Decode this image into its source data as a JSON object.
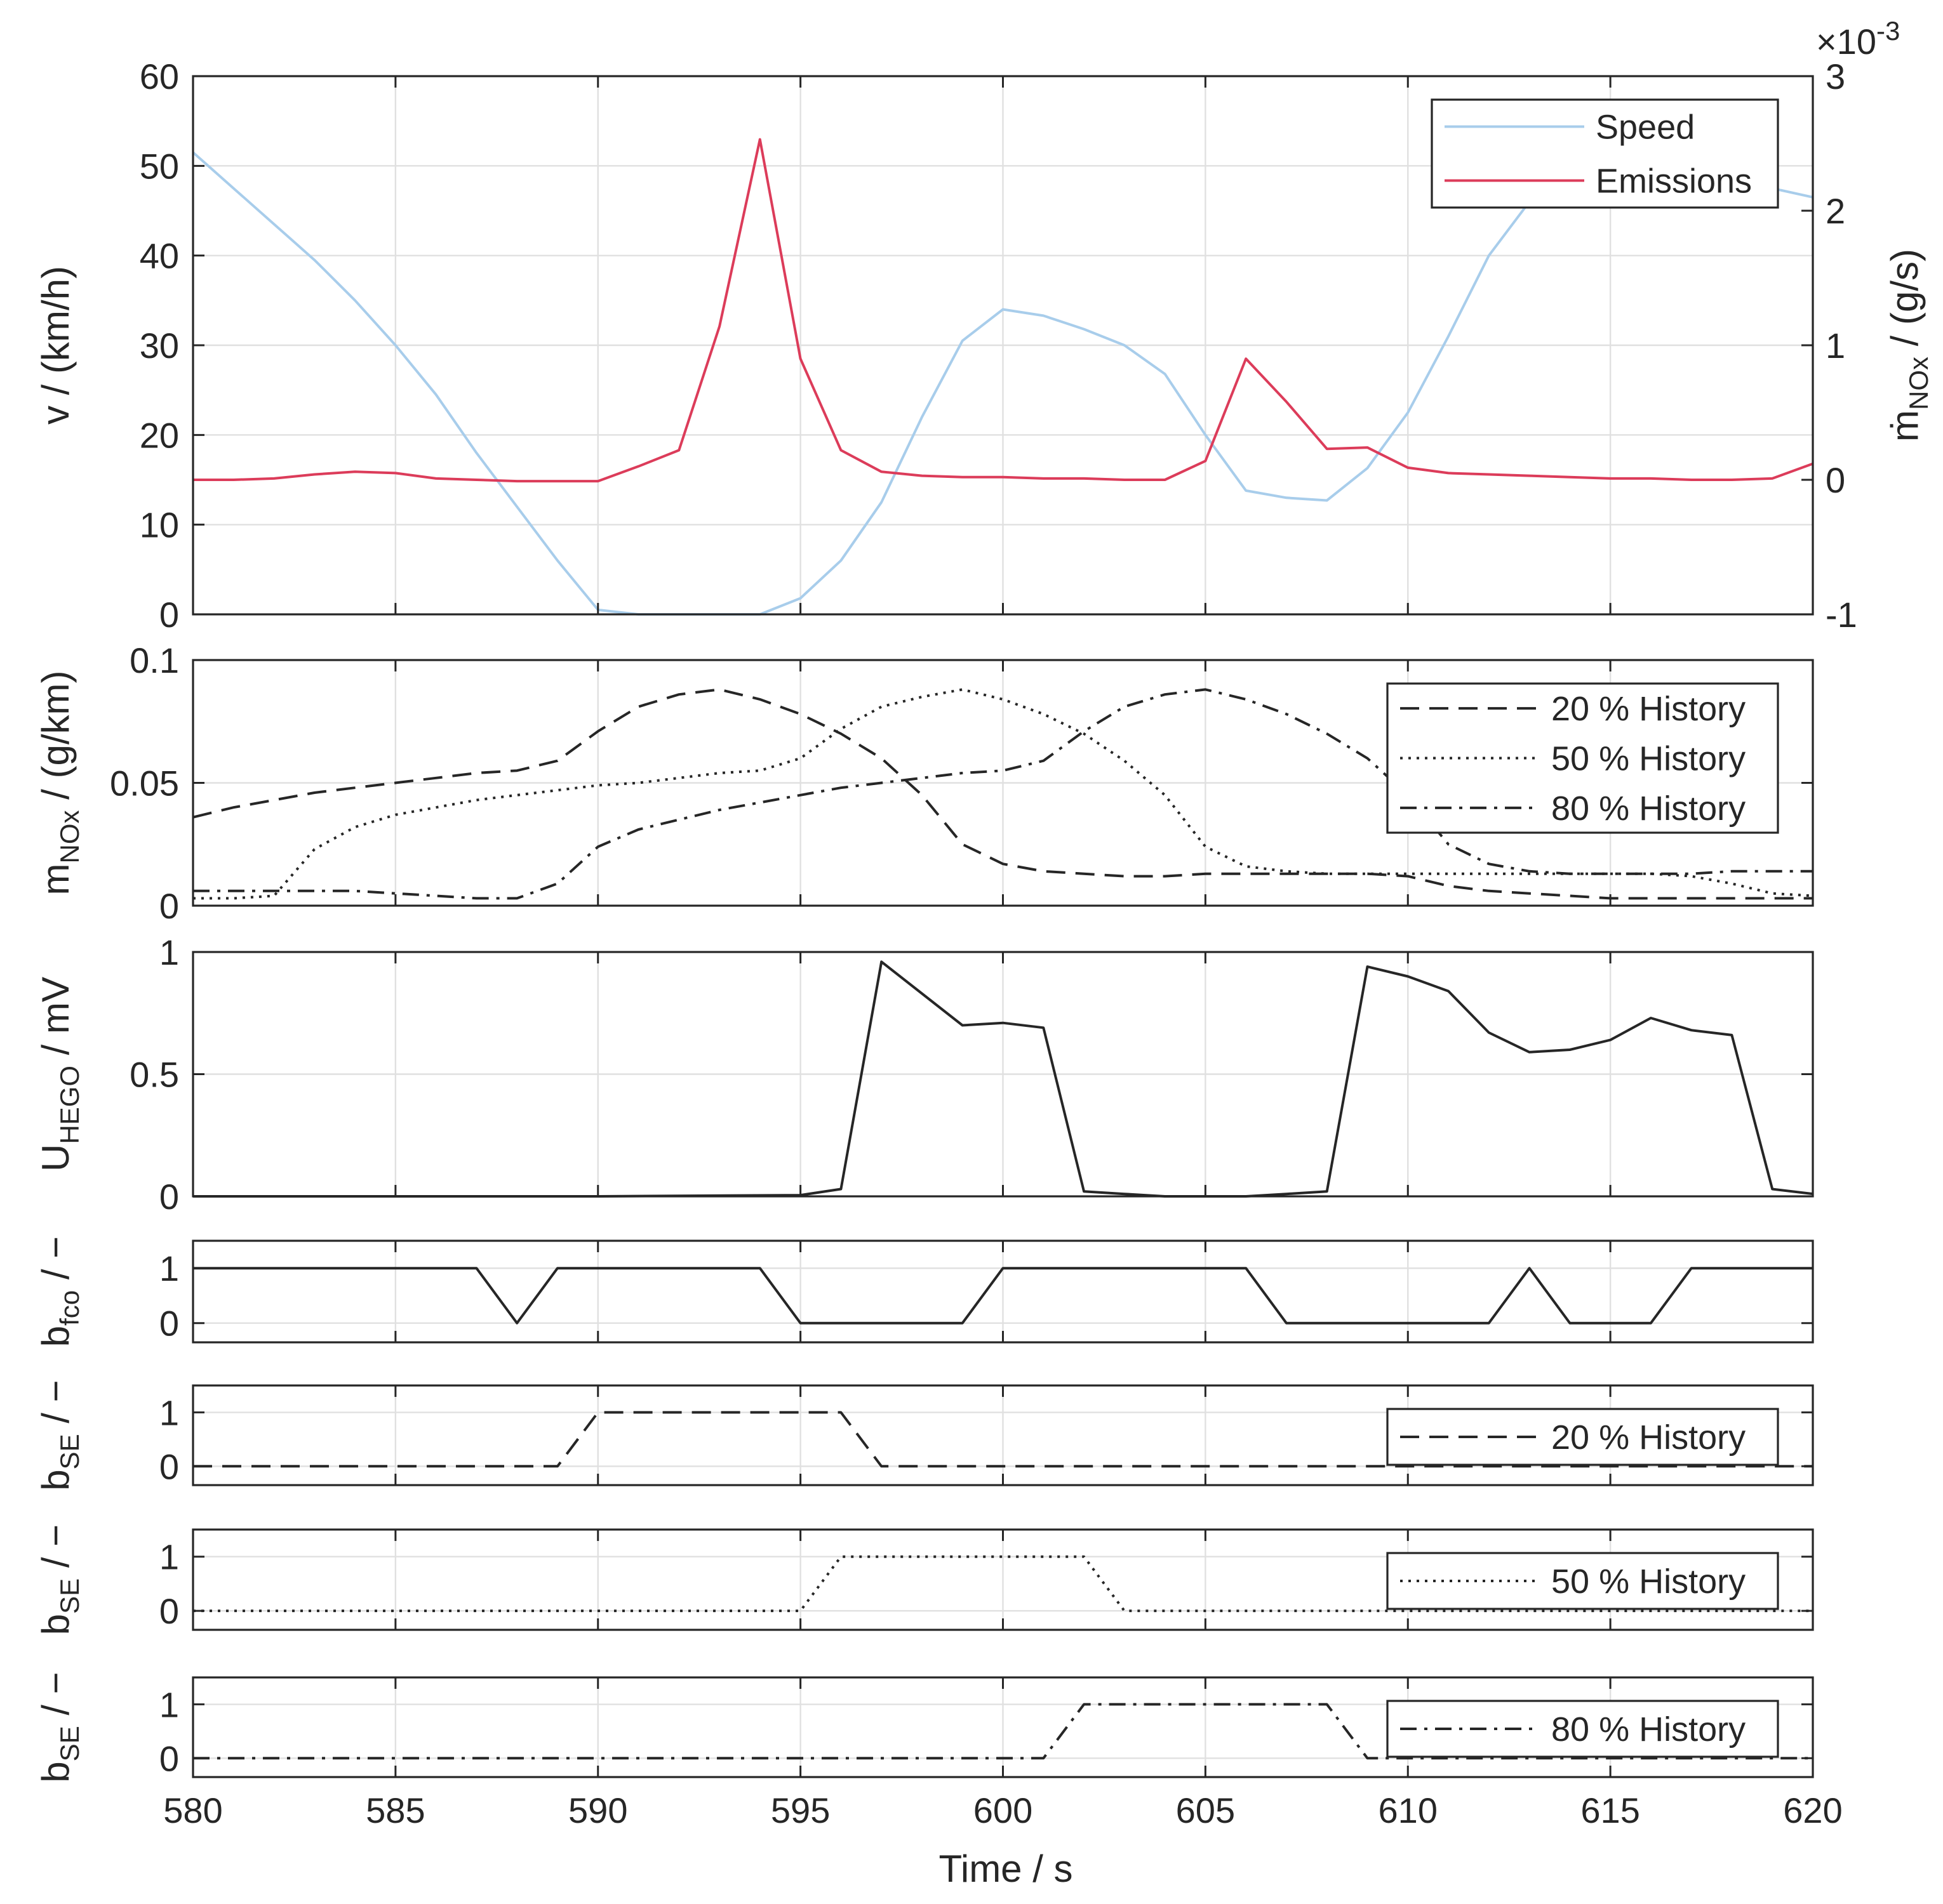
{
  "figure": {
    "xlabel": "Time / s"
  },
  "chart_data": [
    {
      "id": "speed_emissions",
      "type": "line",
      "x_range": [
        580,
        620
      ],
      "x_ticks": [
        580,
        585,
        590,
        595,
        600,
        605,
        610,
        615,
        620
      ],
      "x_tick_labels": [],
      "ylabel": "v / (km/h)",
      "y_range": [
        0,
        60
      ],
      "y_ticks": [
        0,
        10,
        20,
        30,
        40,
        50,
        60
      ],
      "y_tick_labels": [
        "0",
        "10",
        "20",
        "30",
        "40",
        "50",
        "60"
      ],
      "y2label_parts": {
        "main": "ṁ",
        "sub": "NOx",
        "rest": " / (g/s)"
      },
      "y2_range": [
        -1,
        3
      ],
      "y2_ticks": [
        -1,
        0,
        1,
        2,
        3
      ],
      "y2_tick_labels": [
        "-1",
        "0",
        "1",
        "2",
        "3"
      ],
      "y2_exponent_label": "×10",
      "y2_exponent_power": "-3",
      "grid": true,
      "legend_position": "top-right",
      "series": [
        {
          "name": "Speed",
          "color": "#a8cdeb",
          "dash": "solid",
          "axis": "left",
          "x": [
            580,
            581,
            582,
            583,
            584,
            585,
            586,
            587,
            588,
            589,
            590,
            591,
            592,
            593,
            594,
            595,
            596,
            597,
            598,
            599,
            600,
            601,
            602,
            603,
            604,
            605,
            606,
            607,
            608,
            609,
            610,
            611,
            612,
            613,
            614,
            615,
            616,
            617,
            618,
            619,
            620
          ],
          "y": [
            51.5,
            47.5,
            43.5,
            39.5,
            35,
            30,
            24.5,
            18,
            12,
            6,
            0.5,
            0,
            0,
            0,
            0,
            1.8,
            6,
            12.5,
            22,
            30.5,
            34,
            33.3,
            31.8,
            30,
            26.8,
            20,
            13.8,
            13,
            12.7,
            16.3,
            22.5,
            31,
            40,
            46,
            50.5,
            51,
            50.5,
            49.5,
            48.5,
            47.5,
            46.5
          ]
        },
        {
          "name": "Emissions",
          "color": "#dc3c5a",
          "dash": "solid",
          "axis": "right",
          "x": [
            580,
            581,
            582,
            583,
            584,
            585,
            586,
            587,
            588,
            589,
            590,
            591,
            592,
            593,
            594,
            595,
            596,
            597,
            598,
            599,
            600,
            601,
            602,
            603,
            604,
            605,
            606,
            607,
            608,
            609,
            610,
            611,
            612,
            613,
            614,
            615,
            616,
            617,
            618,
            619,
            620
          ],
          "y": [
            0.0,
            0.0,
            0.01,
            0.04,
            0.06,
            0.05,
            0.01,
            0.0,
            -0.01,
            -0.01,
            -0.01,
            0.1,
            0.22,
            1.14,
            2.53,
            0.9,
            0.22,
            0.06,
            0.03,
            0.02,
            0.02,
            0.01,
            0.01,
            0.0,
            0.0,
            0.14,
            0.9,
            0.58,
            0.23,
            0.24,
            0.09,
            0.05,
            0.04,
            0.03,
            0.02,
            0.01,
            0.01,
            0.0,
            0.0,
            0.01,
            0.12
          ]
        }
      ]
    },
    {
      "id": "nox_history",
      "type": "line",
      "x_range": [
        580,
        620
      ],
      "x_ticks": [
        580,
        585,
        590,
        595,
        600,
        605,
        610,
        615,
        620
      ],
      "x_tick_labels": [],
      "ylabel_parts": {
        "main": "m",
        "sub": "NOx",
        "rest": " / (g/km)"
      },
      "y_range": [
        0,
        0.1
      ],
      "y_ticks": [
        0,
        0.05,
        0.1
      ],
      "y_tick_labels": [
        "0",
        "0.05",
        "0.1"
      ],
      "grid": true,
      "legend_position": "top-right",
      "series": [
        {
          "name": "20 % History",
          "color": "#262626",
          "dash": "dashed",
          "x": [
            580,
            581,
            582,
            583,
            584,
            585,
            586,
            587,
            588,
            589,
            590,
            591,
            592,
            593,
            594,
            595,
            596,
            597,
            598,
            599,
            600,
            601,
            602,
            603,
            604,
            605,
            606,
            607,
            608,
            609,
            610,
            611,
            612,
            613,
            614,
            615,
            616,
            617,
            618,
            619,
            620
          ],
          "y": [
            0.036,
            0.04,
            0.043,
            0.046,
            0.048,
            0.05,
            0.052,
            0.054,
            0.055,
            0.059,
            0.071,
            0.081,
            0.086,
            0.088,
            0.084,
            0.078,
            0.07,
            0.06,
            0.045,
            0.025,
            0.017,
            0.014,
            0.013,
            0.012,
            0.012,
            0.013,
            0.013,
            0.013,
            0.013,
            0.013,
            0.012,
            0.008,
            0.006,
            0.005,
            0.004,
            0.003,
            0.003,
            0.003,
            0.003,
            0.003,
            0.003
          ]
        },
        {
          "name": "50 % History",
          "color": "#262626",
          "dash": "dotted",
          "x": [
            580,
            581,
            582,
            583,
            584,
            585,
            586,
            587,
            588,
            589,
            590,
            591,
            592,
            593,
            594,
            595,
            596,
            597,
            598,
            599,
            600,
            601,
            602,
            603,
            604,
            605,
            606,
            607,
            608,
            609,
            610,
            611,
            612,
            613,
            614,
            615,
            616,
            617,
            618,
            619,
            620
          ],
          "y": [
            0.003,
            0.003,
            0.004,
            0.023,
            0.032,
            0.037,
            0.04,
            0.043,
            0.045,
            0.047,
            0.049,
            0.05,
            0.052,
            0.054,
            0.055,
            0.06,
            0.072,
            0.081,
            0.085,
            0.088,
            0.084,
            0.078,
            0.07,
            0.059,
            0.045,
            0.024,
            0.016,
            0.014,
            0.013,
            0.013,
            0.013,
            0.013,
            0.013,
            0.013,
            0.013,
            0.013,
            0.013,
            0.012,
            0.009,
            0.005,
            0.004
          ]
        },
        {
          "name": "80 % History",
          "color": "#262626",
          "dash": "dashdot",
          "x": [
            580,
            581,
            582,
            583,
            584,
            585,
            586,
            587,
            588,
            589,
            590,
            591,
            592,
            593,
            594,
            595,
            596,
            597,
            598,
            599,
            600,
            601,
            602,
            603,
            604,
            605,
            606,
            607,
            608,
            609,
            610,
            611,
            612,
            613,
            614,
            615,
            616,
            617,
            618,
            619,
            620
          ],
          "y": [
            0.006,
            0.006,
            0.006,
            0.006,
            0.006,
            0.005,
            0.004,
            0.003,
            0.003,
            0.009,
            0.024,
            0.031,
            0.035,
            0.039,
            0.042,
            0.045,
            0.048,
            0.05,
            0.052,
            0.054,
            0.055,
            0.059,
            0.071,
            0.081,
            0.086,
            0.088,
            0.084,
            0.078,
            0.07,
            0.06,
            0.045,
            0.025,
            0.017,
            0.014,
            0.013,
            0.013,
            0.013,
            0.013,
            0.014,
            0.014,
            0.014
          ]
        }
      ]
    },
    {
      "id": "hego_voltage",
      "type": "line",
      "x_range": [
        580,
        620
      ],
      "x_ticks": [
        580,
        585,
        590,
        595,
        600,
        605,
        610,
        615,
        620
      ],
      "x_tick_labels": [],
      "ylabel_parts": {
        "main": "U",
        "sub": "HEGO",
        "rest": " / mV"
      },
      "y_range": [
        0,
        1
      ],
      "y_ticks": [
        0,
        0.5,
        1
      ],
      "y_tick_labels": [
        "0",
        "0.5",
        "1"
      ],
      "grid": true,
      "legend_position": "none",
      "series": [
        {
          "name": "UHEGO",
          "color": "#262626",
          "dash": "solid",
          "x": [
            580,
            585,
            590,
            595,
            596,
            597,
            598,
            599,
            600,
            601,
            602,
            603,
            604,
            605,
            606,
            607,
            608,
            609,
            610,
            611,
            612,
            613,
            614,
            615,
            616,
            617,
            618,
            619,
            620
          ],
          "y": [
            0,
            0,
            0,
            0.005,
            0.03,
            0.96,
            0.83,
            0.7,
            0.71,
            0.69,
            0.02,
            0.01,
            0,
            0,
            0,
            0.01,
            0.02,
            0.94,
            0.9,
            0.84,
            0.67,
            0.59,
            0.6,
            0.64,
            0.73,
            0.68,
            0.66,
            0.03,
            0.01
          ]
        }
      ]
    },
    {
      "id": "b_fco",
      "type": "line",
      "x_range": [
        580,
        620
      ],
      "x_ticks": [
        580,
        585,
        590,
        595,
        600,
        605,
        610,
        615,
        620
      ],
      "x_tick_labels": [],
      "ylabel_parts": {
        "main": "b",
        "sub": "fco",
        "rest": " / −"
      },
      "y_range": [
        -0.35,
        1.5
      ],
      "y_ticks": [
        0,
        1
      ],
      "y_tick_labels": [
        "0",
        "1"
      ],
      "grid": true,
      "legend_position": "none",
      "series": [
        {
          "name": "bfco",
          "color": "#262626",
          "dash": "solid",
          "x": [
            580,
            587,
            588,
            589,
            594,
            595,
            599,
            600,
            606,
            607,
            612,
            613,
            614,
            616,
            617,
            620
          ],
          "y": [
            1,
            1,
            0,
            1,
            1,
            0,
            0,
            1,
            1,
            0,
            0,
            1,
            0,
            0,
            1,
            1
          ]
        }
      ]
    },
    {
      "id": "b_se_20",
      "type": "line",
      "x_range": [
        580,
        620
      ],
      "x_ticks": [
        580,
        585,
        590,
        595,
        600,
        605,
        610,
        615,
        620
      ],
      "x_tick_labels": [],
      "ylabel_parts": {
        "main": "b",
        "sub": "SE",
        "rest": " / −"
      },
      "y_range": [
        -0.35,
        1.5
      ],
      "y_ticks": [
        0,
        1
      ],
      "y_tick_labels": [
        "0",
        "1"
      ],
      "grid": true,
      "legend_position": "top-right",
      "series": [
        {
          "name": "20 % History",
          "color": "#262626",
          "dash": "dashed",
          "x": [
            580,
            589,
            590,
            596,
            597,
            620
          ],
          "y": [
            0,
            0,
            1,
            1,
            0,
            0
          ]
        }
      ]
    },
    {
      "id": "b_se_50",
      "type": "line",
      "x_range": [
        580,
        620
      ],
      "x_ticks": [
        580,
        585,
        590,
        595,
        600,
        605,
        610,
        615,
        620
      ],
      "x_tick_labels": [],
      "ylabel_parts": {
        "main": "b",
        "sub": "SE",
        "rest": " / −"
      },
      "y_range": [
        -0.35,
        1.5
      ],
      "y_ticks": [
        0,
        1
      ],
      "y_tick_labels": [
        "0",
        "1"
      ],
      "grid": true,
      "legend_position": "top-right",
      "series": [
        {
          "name": "50 % History",
          "color": "#262626",
          "dash": "dotted",
          "x": [
            580,
            595,
            596,
            602,
            603,
            620
          ],
          "y": [
            0,
            0,
            1,
            1,
            0,
            0
          ]
        }
      ]
    },
    {
      "id": "b_se_80",
      "type": "line",
      "x_range": [
        580,
        620
      ],
      "x_ticks": [
        580,
        585,
        590,
        595,
        600,
        605,
        610,
        615,
        620
      ],
      "x_tick_labels": [
        "580",
        "585",
        "590",
        "595",
        "600",
        "605",
        "610",
        "615",
        "620"
      ],
      "ylabel_parts": {
        "main": "b",
        "sub": "SE",
        "rest": " / −"
      },
      "y_range": [
        -0.35,
        1.5
      ],
      "y_ticks": [
        0,
        1
      ],
      "y_tick_labels": [
        "0",
        "1"
      ],
      "grid": true,
      "legend_position": "top-right",
      "series": [
        {
          "name": "80 % History",
          "color": "#262626",
          "dash": "dashdot",
          "x": [
            580,
            601,
            602,
            608,
            609,
            620
          ],
          "y": [
            0,
            0,
            1,
            1,
            0,
            0
          ]
        }
      ]
    }
  ]
}
